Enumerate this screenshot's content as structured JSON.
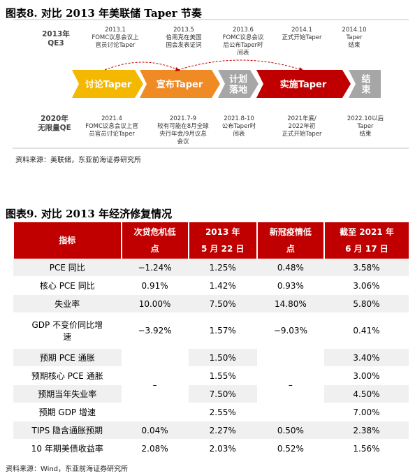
{
  "figure8": {
    "title": "图表8.   对比 2013 年美联储 Taper 节奏",
    "row_top": [
      "2013年",
      "QE3"
    ],
    "row_bottom": [
      "2020年",
      "无限量QE"
    ],
    "events_top": [
      [
        "2013.1",
        "FOMC议息会议上",
        "官员讨论Taper"
      ],
      [
        "2013.5",
        "伯南克在美国",
        "国会发表证词"
      ],
      [
        "2013.6",
        "FOMC议息会议",
        "后公布Taper时",
        "间表"
      ],
      [
        "2014.1",
        "正式开始Taper"
      ],
      [
        "2014.10",
        "Taper",
        "结束"
      ]
    ],
    "stages": [
      [
        "讨论Taper"
      ],
      [
        "宣布Taper"
      ],
      [
        "计划",
        "落地"
      ],
      [
        "实施Taper"
      ],
      [
        "结",
        "束"
      ]
    ],
    "events_bottom": [
      [
        "2021.4",
        "FOMC议息会议上官",
        "员官员讨论Taper"
      ],
      [
        "2021.7-9",
        "较有可能在8月全球",
        "央行年会/9月议息",
        "会议"
      ],
      [
        "2021.8-10",
        "公布Taper时",
        "间表"
      ],
      [
        "2021年底/",
        "2022年初",
        "正式开始Taper"
      ],
      [
        "2022.10以后",
        "Taper",
        "结束"
      ]
    ],
    "source": "资料来源：美联储，东亚前海证券研究所"
  },
  "figure9": {
    "title": "图表9.   对比 2013 年经济修复情况",
    "header": [
      [
        "指标"
      ],
      [
        "次贷危机低",
        "点"
      ],
      [
        "2013 年",
        "5 月 22 日"
      ],
      [
        "新冠疫情低",
        "点"
      ],
      [
        "截至 2021 年",
        "6 月 17 日"
      ]
    ],
    "rows": [
      [
        "PCE 同比",
        "−1.24%",
        "1.25%",
        "0.48%",
        "3.58%"
      ],
      [
        "核心 PCE 同比",
        "0.91%",
        "1.42%",
        "0.93%",
        "3.06%"
      ],
      [
        "失业率",
        "10.00%",
        "7.50%",
        "14.80%",
        "5.80%"
      ],
      [
        [
          "GDP 不变价同比增",
          "速"
        ],
        "−3.92%",
        "1.57%",
        "−9.03%",
        "0.41%"
      ],
      [
        "预期 PCE 通胀",
        "–",
        "1.50%",
        "–",
        "3.40%"
      ],
      [
        "预期核心 PCE 通胀",
        "1.55%",
        "3.00%"
      ],
      [
        "预期当年失业率",
        "7.50%",
        "4.50%"
      ],
      [
        "预期 GDP 增速",
        "2.55%",
        "7.00%"
      ],
      [
        "TIPS 隐含通胀预期",
        "0.04%",
        "2.27%",
        "0.50%",
        "2.38%"
      ],
      [
        "10 年期美债收益率",
        "2.08%",
        "2.03%",
        "0.52%",
        "1.56%"
      ]
    ],
    "source": "资料来源：Wind，东亚前海证券研究所"
  }
}
